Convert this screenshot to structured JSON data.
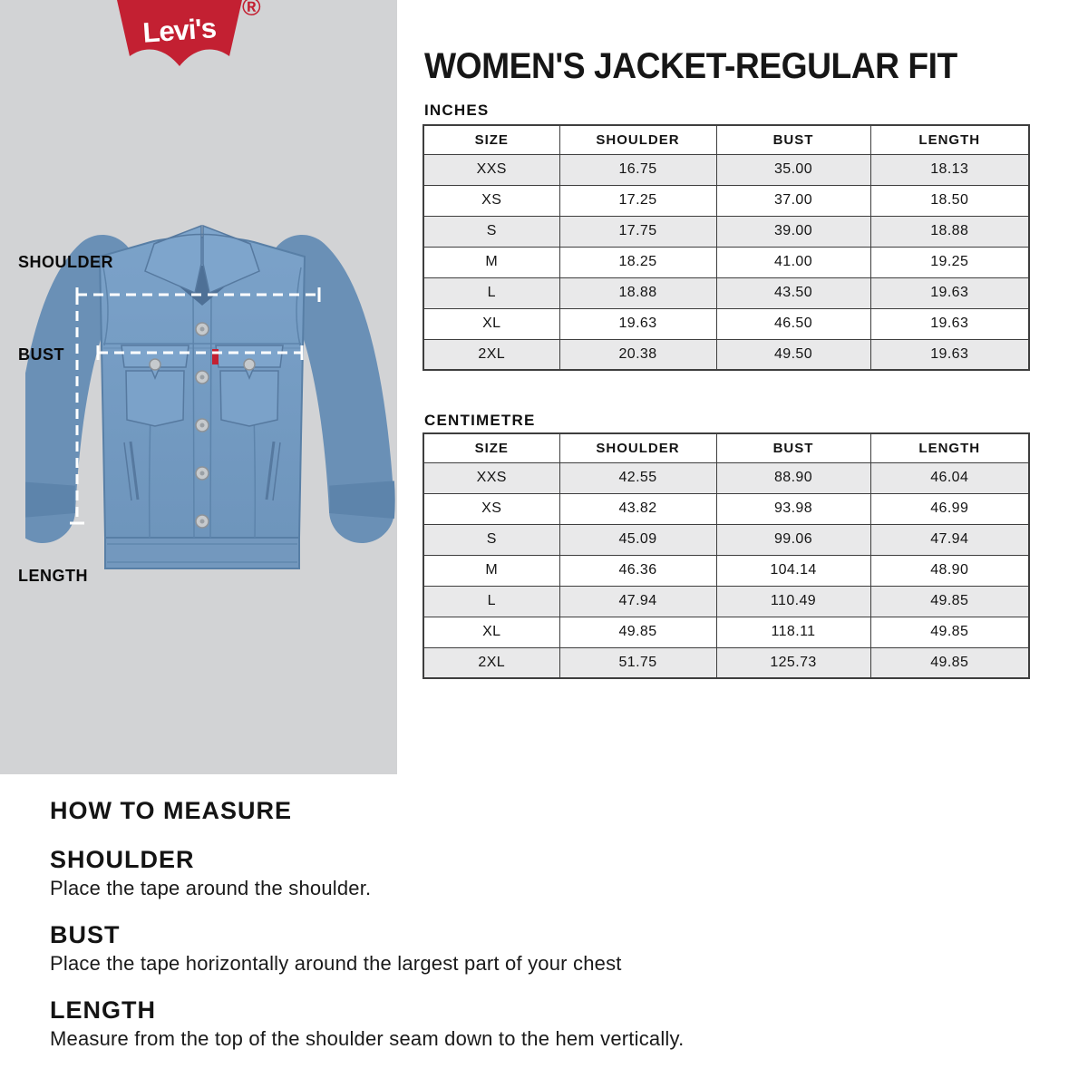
{
  "brand": {
    "logo_text": "Levi's",
    "registered": "®"
  },
  "page": {
    "title": "WOMEN'S JACKET-REGULAR FIT"
  },
  "diagram": {
    "shoulder_label": "SHOULDER",
    "bust_label": "BUST",
    "length_label": "LENGTH"
  },
  "tables": [
    {
      "unit_label": "INCHES",
      "columns": [
        "SIZE",
        "SHOULDER",
        "BUST",
        "LENGTH"
      ],
      "rows": [
        [
          "XXS",
          "16.75",
          "35.00",
          "18.13"
        ],
        [
          "XS",
          "17.25",
          "37.00",
          "18.50"
        ],
        [
          "S",
          "17.75",
          "39.00",
          "18.88"
        ],
        [
          "M",
          "18.25",
          "41.00",
          "19.25"
        ],
        [
          "L",
          "18.88",
          "43.50",
          "19.63"
        ],
        [
          "XL",
          "19.63",
          "46.50",
          "19.63"
        ],
        [
          "2XL",
          "20.38",
          "49.50",
          "19.63"
        ]
      ]
    },
    {
      "unit_label": "CENTIMETRE",
      "columns": [
        "SIZE",
        "SHOULDER",
        "BUST",
        "LENGTH"
      ],
      "rows": [
        [
          "XXS",
          "42.55",
          "88.90",
          "46.04"
        ],
        [
          "XS",
          "43.82",
          "93.98",
          "46.99"
        ],
        [
          "S",
          "45.09",
          "99.06",
          "47.94"
        ],
        [
          "M",
          "46.36",
          "104.14",
          "48.90"
        ],
        [
          "L",
          "47.94",
          "110.49",
          "49.85"
        ],
        [
          "XL",
          "49.85",
          "118.11",
          "49.85"
        ],
        [
          "2XL",
          "51.75",
          "125.73",
          "49.85"
        ]
      ]
    }
  ],
  "how_to_measure": {
    "title": "HOW TO MEASURE",
    "items": [
      {
        "heading": "SHOULDER",
        "text": "Place the tape around the shoulder."
      },
      {
        "heading": "BUST",
        "text": "Place the tape horizontally around the largest part of your chest"
      },
      {
        "heading": "LENGTH",
        "text": "Measure from the top of the shoulder seam down to the hem vertically."
      }
    ]
  },
  "colors": {
    "brand_red": "#c32032",
    "panel_gray": "#d2d3d5",
    "row_stripe": "#e9e9ea",
    "table_border": "#3e3e3e",
    "denim_blue": "#7ba2c9",
    "text": "#141414"
  }
}
